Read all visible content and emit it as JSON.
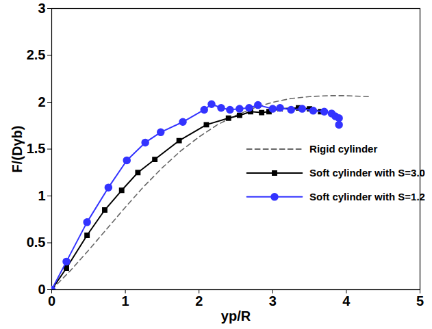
{
  "chart_data": {
    "type": "line",
    "x_label": "yp/R",
    "y_label": "F/(Dγb)",
    "xlim": [
      0,
      5
    ],
    "ylim": [
      0,
      3
    ],
    "xticks": [
      0,
      1,
      2,
      3,
      4,
      5
    ],
    "yticks": [
      0,
      0.5,
      1,
      1.5,
      2,
      2.5,
      3
    ],
    "legend": "right",
    "series": [
      {
        "name": "Rigid cylinder",
        "color": "#666666",
        "line_style": "dashed",
        "marker": "none",
        "x": [
          0,
          0.25,
          0.5,
          0.75,
          1,
          1.25,
          1.5,
          1.75,
          2,
          2.25,
          2.5,
          2.75,
          3,
          3.25,
          3.5,
          3.75,
          4,
          4.3
        ],
        "values": [
          0,
          0.2,
          0.42,
          0.65,
          0.88,
          1.1,
          1.3,
          1.48,
          1.63,
          1.76,
          1.86,
          1.94,
          2.0,
          2.04,
          2.06,
          2.07,
          2.07,
          2.06
        ]
      },
      {
        "name": "Soft cylinder with S=3.0",
        "color": "#000000",
        "line_style": "solid",
        "marker": "square",
        "x": [
          0,
          0.2,
          0.48,
          0.72,
          0.95,
          1.17,
          1.4,
          1.73,
          2.1,
          2.4,
          2.55,
          2.7,
          2.85,
          2.95,
          3.1,
          3.35,
          3.5,
          3.65
        ],
        "values": [
          0,
          0.23,
          0.58,
          0.85,
          1.06,
          1.25,
          1.39,
          1.59,
          1.76,
          1.83,
          1.86,
          1.9,
          1.89,
          1.9,
          1.93,
          1.94,
          1.93,
          1.9
        ]
      },
      {
        "name": "Soft cylinder with S=1.2",
        "color": "#3333ff",
        "line_style": "solid",
        "marker": "circle",
        "x": [
          0,
          0.2,
          0.48,
          0.77,
          1.02,
          1.27,
          1.48,
          1.78,
          2.07,
          2.17,
          2.3,
          2.42,
          2.55,
          2.68,
          2.8,
          3.0,
          3.1,
          3.25,
          3.4,
          3.55,
          3.7,
          3.8,
          3.85,
          3.9,
          3.9
        ],
        "values": [
          0,
          0.3,
          0.72,
          1.09,
          1.38,
          1.57,
          1.68,
          1.79,
          1.92,
          1.98,
          1.94,
          1.92,
          1.93,
          1.94,
          1.97,
          1.93,
          1.94,
          1.92,
          1.93,
          1.91,
          1.9,
          1.88,
          1.85,
          1.83,
          1.76
        ]
      }
    ]
  }
}
